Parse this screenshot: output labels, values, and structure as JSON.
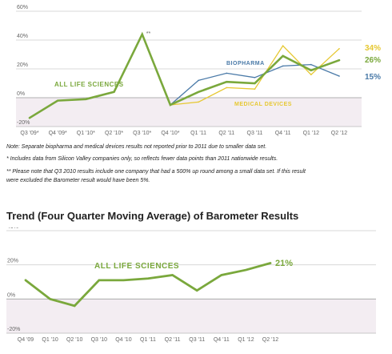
{
  "chart_data": [
    {
      "type": "line",
      "title": "",
      "x": [
        "Q3 '09*",
        "Q4 '09*",
        "Q1 '10*",
        "Q2 '10*",
        "Q3 '10*",
        "Q4 '10*",
        "Q1 '11",
        "Q2 '11",
        "Q3 '11",
        "Q4 '11",
        "Q1 '12",
        "Q2 '12"
      ],
      "yticks": [
        "60%",
        "40%",
        "20%",
        "0%",
        "-20%"
      ],
      "ylim": [
        -20,
        60
      ],
      "annotations": [
        {
          "text": "**",
          "at": "Q3 '10*"
        }
      ],
      "series": [
        {
          "name": "ALL LIFE SCIENCES",
          "color": "#7aa83c",
          "values": [
            -14,
            -2,
            -1,
            4,
            44,
            -5,
            4,
            11,
            10,
            29,
            19,
            26
          ],
          "end_label": "26%"
        },
        {
          "name": "BIOPHARMA",
          "color": "#4a7aa8",
          "values": [
            null,
            null,
            null,
            null,
            null,
            -5,
            12,
            17,
            14,
            22,
            23,
            15
          ],
          "end_label": "15%"
        },
        {
          "name": "MEDICAL DEVICES",
          "color": "#e6c832",
          "values": [
            null,
            null,
            null,
            null,
            null,
            -5,
            -3,
            7,
            6,
            36,
            16,
            34
          ],
          "end_label": "34%"
        }
      ]
    },
    {
      "type": "line",
      "title": "Trend (Four Quarter Moving Average) of Barometer Results",
      "x": [
        "Q4 '09",
        "Q1 '10",
        "Q2 '10",
        "Q3 '10",
        "Q4 '10",
        "Q1 '11",
        "Q2 '11",
        "Q3 '11",
        "Q4 '11",
        "Q1 '12",
        "Q2 '12"
      ],
      "yticks": [
        "40%",
        "20%",
        "0%",
        "-20%"
      ],
      "ylim": [
        -20,
        40
      ],
      "series": [
        {
          "name": "ALL LIFE SCIENCES",
          "color": "#7aa83c",
          "values": [
            11,
            0,
            -4,
            11,
            11,
            12,
            14,
            5,
            14,
            17,
            21
          ],
          "end_label": "21%"
        }
      ]
    }
  ],
  "notes": [
    "Note: Separate biopharma and medical devices results not reported prior to 2011 due to smaller data set.",
    "* Includes data from Silicon Valley companies only, so reflects fewer data points than 2011 nationwide results.",
    "** Please note that Q3 2010 results include one company that had a 500% up round among a small data set. If this result",
    "were excluded the Barometer result would have been 5%."
  ]
}
